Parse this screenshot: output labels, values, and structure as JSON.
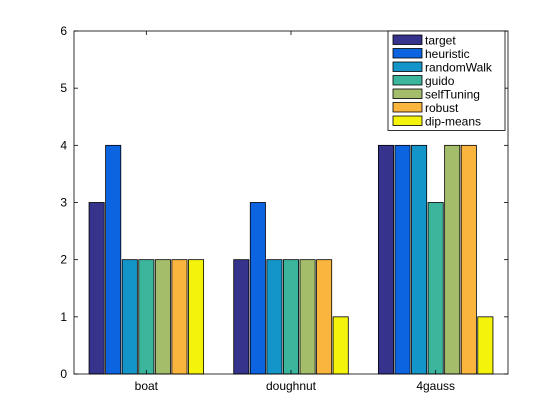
{
  "chart_data": {
    "type": "bar",
    "categories": [
      "boat",
      "doughnut",
      "4gauss"
    ],
    "series": [
      {
        "name": "target",
        "values": [
          3,
          2,
          4
        ],
        "color": "#35338c"
      },
      {
        "name": "heuristic",
        "values": [
          4,
          3,
          4
        ],
        "color": "#0d64e0"
      },
      {
        "name": "randomWalk",
        "values": [
          2,
          2,
          4
        ],
        "color": "#1495c9"
      },
      {
        "name": "guido",
        "values": [
          2,
          2,
          3
        ],
        "color": "#3bb59c"
      },
      {
        "name": "selfTuning",
        "values": [
          2,
          2,
          4
        ],
        "color": "#a4bd6a"
      },
      {
        "name": "robust",
        "values": [
          2,
          2,
          4
        ],
        "color": "#f9b53d"
      },
      {
        "name": "dip-means",
        "values": [
          2,
          1,
          1
        ],
        "color": "#f4f30b"
      }
    ],
    "ylim": [
      0,
      6
    ],
    "yticks": [
      "0",
      "1",
      "2",
      "3",
      "4",
      "5",
      "6"
    ],
    "legend_position": "top-right",
    "grid": false
  }
}
